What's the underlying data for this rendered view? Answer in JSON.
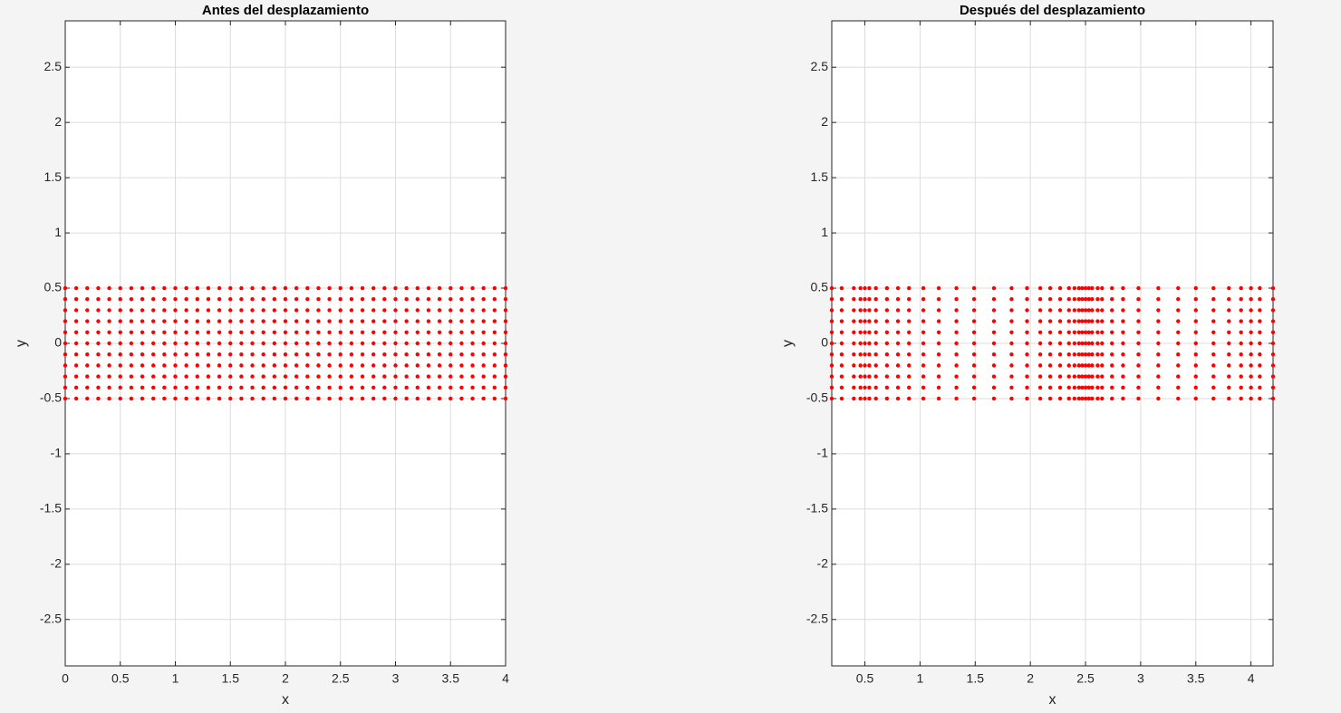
{
  "chart_data": [
    {
      "type": "scatter",
      "title": "Antes del desplazamiento",
      "xlabel": "x",
      "ylabel": "y",
      "color": "#ff0000",
      "grid": true,
      "xlim": [
        0,
        4
      ],
      "ylim": [
        -2.92,
        2.92
      ],
      "xticks": [
        0,
        0.5,
        1,
        1.5,
        2,
        2.5,
        3,
        3.5,
        4
      ],
      "yticks": [
        -2.5,
        -2,
        -1.5,
        -1,
        -0.5,
        0,
        0.5,
        1,
        1.5,
        2,
        2.5
      ],
      "x": [
        0,
        0.1,
        0.2,
        0.3,
        0.4,
        0.5,
        0.6,
        0.7,
        0.8,
        0.9,
        1,
        1.1,
        1.2,
        1.3,
        1.4,
        1.5,
        1.6,
        1.7,
        1.8,
        1.9,
        2,
        2.1,
        2.2,
        2.3,
        2.4,
        2.5,
        2.6,
        2.7,
        2.8,
        2.9,
        3,
        3.1,
        3.2,
        3.3,
        3.4,
        3.5,
        3.6,
        3.7,
        3.8,
        3.9,
        4
      ],
      "series": [
        {
          "values": [
            0.5,
            0.5,
            0.5,
            0.5,
            0.5,
            0.5,
            0.5,
            0.5,
            0.5,
            0.5,
            0.5,
            0.5,
            0.5,
            0.5,
            0.5,
            0.5,
            0.5,
            0.5,
            0.5,
            0.5,
            0.5,
            0.5,
            0.5,
            0.5,
            0.5,
            0.5,
            0.5,
            0.5,
            0.5,
            0.5,
            0.5,
            0.5,
            0.5,
            0.5,
            0.5,
            0.5,
            0.5,
            0.5,
            0.5,
            0.5,
            0.5
          ]
        },
        {
          "values": [
            0.4,
            0.4,
            0.4,
            0.4,
            0.4,
            0.4,
            0.4,
            0.4,
            0.4,
            0.4,
            0.4,
            0.4,
            0.4,
            0.4,
            0.4,
            0.4,
            0.4,
            0.4,
            0.4,
            0.4,
            0.4,
            0.4,
            0.4,
            0.4,
            0.4,
            0.4,
            0.4,
            0.4,
            0.4,
            0.4,
            0.4,
            0.4,
            0.4,
            0.4,
            0.4,
            0.4,
            0.4,
            0.4,
            0.4,
            0.4,
            0.4
          ]
        },
        {
          "values": [
            0.3,
            0.3,
            0.3,
            0.3,
            0.3,
            0.3,
            0.3,
            0.3,
            0.3,
            0.3,
            0.3,
            0.3,
            0.3,
            0.3,
            0.3,
            0.3,
            0.3,
            0.3,
            0.3,
            0.3,
            0.3,
            0.3,
            0.3,
            0.3,
            0.3,
            0.3,
            0.3,
            0.3,
            0.3,
            0.3,
            0.3,
            0.3,
            0.3,
            0.3,
            0.3,
            0.3,
            0.3,
            0.3,
            0.3,
            0.3,
            0.3
          ]
        },
        {
          "values": [
            0.2,
            0.2,
            0.2,
            0.2,
            0.2,
            0.2,
            0.2,
            0.2,
            0.2,
            0.2,
            0.2,
            0.2,
            0.2,
            0.2,
            0.2,
            0.2,
            0.2,
            0.2,
            0.2,
            0.2,
            0.2,
            0.2,
            0.2,
            0.2,
            0.2,
            0.2,
            0.2,
            0.2,
            0.2,
            0.2,
            0.2,
            0.2,
            0.2,
            0.2,
            0.2,
            0.2,
            0.2,
            0.2,
            0.2,
            0.2,
            0.2
          ]
        },
        {
          "values": [
            0.1,
            0.1,
            0.1,
            0.1,
            0.1,
            0.1,
            0.1,
            0.1,
            0.1,
            0.1,
            0.1,
            0.1,
            0.1,
            0.1,
            0.1,
            0.1,
            0.1,
            0.1,
            0.1,
            0.1,
            0.1,
            0.1,
            0.1,
            0.1,
            0.1,
            0.1,
            0.1,
            0.1,
            0.1,
            0.1,
            0.1,
            0.1,
            0.1,
            0.1,
            0.1,
            0.1,
            0.1,
            0.1,
            0.1,
            0.1,
            0.1
          ]
        },
        {
          "values": [
            0,
            0,
            0,
            0,
            0,
            0,
            0,
            0,
            0,
            0,
            0,
            0,
            0,
            0,
            0,
            0,
            0,
            0,
            0,
            0,
            0,
            0,
            0,
            0,
            0,
            0,
            0,
            0,
            0,
            0,
            0,
            0,
            0,
            0,
            0,
            0,
            0,
            0,
            0,
            0,
            0
          ]
        },
        {
          "values": [
            -0.1,
            -0.1,
            -0.1,
            -0.1,
            -0.1,
            -0.1,
            -0.1,
            -0.1,
            -0.1,
            -0.1,
            -0.1,
            -0.1,
            -0.1,
            -0.1,
            -0.1,
            -0.1,
            -0.1,
            -0.1,
            -0.1,
            -0.1,
            -0.1,
            -0.1,
            -0.1,
            -0.1,
            -0.1,
            -0.1,
            -0.1,
            -0.1,
            -0.1,
            -0.1,
            -0.1,
            -0.1,
            -0.1,
            -0.1,
            -0.1,
            -0.1,
            -0.1,
            -0.1,
            -0.1,
            -0.1,
            -0.1
          ]
        },
        {
          "values": [
            -0.2,
            -0.2,
            -0.2,
            -0.2,
            -0.2,
            -0.2,
            -0.2,
            -0.2,
            -0.2,
            -0.2,
            -0.2,
            -0.2,
            -0.2,
            -0.2,
            -0.2,
            -0.2,
            -0.2,
            -0.2,
            -0.2,
            -0.2,
            -0.2,
            -0.2,
            -0.2,
            -0.2,
            -0.2,
            -0.2,
            -0.2,
            -0.2,
            -0.2,
            -0.2,
            -0.2,
            -0.2,
            -0.2,
            -0.2,
            -0.2,
            -0.2,
            -0.2,
            -0.2,
            -0.2,
            -0.2,
            -0.2
          ]
        },
        {
          "values": [
            -0.3,
            -0.3,
            -0.3,
            -0.3,
            -0.3,
            -0.3,
            -0.3,
            -0.3,
            -0.3,
            -0.3,
            -0.3,
            -0.3,
            -0.3,
            -0.3,
            -0.3,
            -0.3,
            -0.3,
            -0.3,
            -0.3,
            -0.3,
            -0.3,
            -0.3,
            -0.3,
            -0.3,
            -0.3,
            -0.3,
            -0.3,
            -0.3,
            -0.3,
            -0.3,
            -0.3,
            -0.3,
            -0.3,
            -0.3,
            -0.3,
            -0.3,
            -0.3,
            -0.3,
            -0.3,
            -0.3,
            -0.3
          ]
        },
        {
          "values": [
            -0.4,
            -0.4,
            -0.4,
            -0.4,
            -0.4,
            -0.4,
            -0.4,
            -0.4,
            -0.4,
            -0.4,
            -0.4,
            -0.4,
            -0.4,
            -0.4,
            -0.4,
            -0.4,
            -0.4,
            -0.4,
            -0.4,
            -0.4,
            -0.4,
            -0.4,
            -0.4,
            -0.4,
            -0.4,
            -0.4,
            -0.4,
            -0.4,
            -0.4,
            -0.4,
            -0.4,
            -0.4,
            -0.4,
            -0.4,
            -0.4,
            -0.4,
            -0.4,
            -0.4,
            -0.4,
            -0.4,
            -0.4
          ]
        },
        {
          "values": [
            -0.5,
            -0.5,
            -0.5,
            -0.5,
            -0.5,
            -0.5,
            -0.5,
            -0.5,
            -0.5,
            -0.5,
            -0.5,
            -0.5,
            -0.5,
            -0.5,
            -0.5,
            -0.5,
            -0.5,
            -0.5,
            -0.5,
            -0.5,
            -0.5,
            -0.5,
            -0.5,
            -0.5,
            -0.5,
            -0.5,
            -0.5,
            -0.5,
            -0.5,
            -0.5,
            -0.5,
            -0.5,
            -0.5,
            -0.5,
            -0.5,
            -0.5,
            -0.5,
            -0.5,
            -0.5,
            -0.5,
            -0.5
          ]
        }
      ]
    },
    {
      "type": "scatter",
      "title": "Después del desplazamiento",
      "xlabel": "x",
      "ylabel": "y",
      "color": "#ff0000",
      "grid": true,
      "xlim": [
        0.2,
        4.2
      ],
      "ylim": [
        -2.92,
        2.92
      ],
      "xticks": [
        0.5,
        1,
        1.5,
        2,
        2.5,
        3,
        3.5,
        4
      ],
      "yticks": [
        -2.5,
        -2,
        -1.5,
        -1,
        -0.5,
        0,
        0.5,
        1,
        1.5,
        2,
        2.5
      ],
      "x": [
        0.2,
        0.29,
        0.4,
        0.46,
        0.5,
        0.54,
        0.6,
        0.7,
        0.8,
        0.9,
        1.03,
        1.17,
        1.33,
        1.49,
        1.67,
        1.83,
        1.97,
        2.09,
        2.18,
        2.27,
        2.35,
        2.4,
        2.44,
        2.47,
        2.5,
        2.53,
        2.56,
        2.61,
        2.65,
        2.74,
        2.84,
        2.98,
        3.16,
        3.34,
        3.5,
        3.66,
        3.8,
        3.91,
        4,
        4.08,
        4.2
      ],
      "series": [
        {
          "values": [
            0.5,
            0.5,
            0.5,
            0.5,
            0.5,
            0.5,
            0.5,
            0.5,
            0.5,
            0.5,
            0.5,
            0.5,
            0.5,
            0.5,
            0.5,
            0.5,
            0.5,
            0.5,
            0.5,
            0.5,
            0.5,
            0.5,
            0.5,
            0.5,
            0.5,
            0.5,
            0.5,
            0.5,
            0.5,
            0.5,
            0.5,
            0.5,
            0.5,
            0.5,
            0.5,
            0.5,
            0.5,
            0.5,
            0.5,
            0.5,
            0.5
          ]
        },
        {
          "values": [
            0.4,
            0.4,
            0.4,
            0.4,
            0.4,
            0.4,
            0.4,
            0.4,
            0.4,
            0.4,
            0.4,
            0.4,
            0.4,
            0.4,
            0.4,
            0.4,
            0.4,
            0.4,
            0.4,
            0.4,
            0.4,
            0.4,
            0.4,
            0.4,
            0.4,
            0.4,
            0.4,
            0.4,
            0.4,
            0.4,
            0.4,
            0.4,
            0.4,
            0.4,
            0.4,
            0.4,
            0.4,
            0.4,
            0.4,
            0.4,
            0.4
          ]
        },
        {
          "values": [
            0.3,
            0.3,
            0.3,
            0.3,
            0.3,
            0.3,
            0.3,
            0.3,
            0.3,
            0.3,
            0.3,
            0.3,
            0.3,
            0.3,
            0.3,
            0.3,
            0.3,
            0.3,
            0.3,
            0.3,
            0.3,
            0.3,
            0.3,
            0.3,
            0.3,
            0.3,
            0.3,
            0.3,
            0.3,
            0.3,
            0.3,
            0.3,
            0.3,
            0.3,
            0.3,
            0.3,
            0.3,
            0.3,
            0.3,
            0.3,
            0.3
          ]
        },
        {
          "values": [
            0.2,
            0.2,
            0.2,
            0.2,
            0.2,
            0.2,
            0.2,
            0.2,
            0.2,
            0.2,
            0.2,
            0.2,
            0.2,
            0.2,
            0.2,
            0.2,
            0.2,
            0.2,
            0.2,
            0.2,
            0.2,
            0.2,
            0.2,
            0.2,
            0.2,
            0.2,
            0.2,
            0.2,
            0.2,
            0.2,
            0.2,
            0.2,
            0.2,
            0.2,
            0.2,
            0.2,
            0.2,
            0.2,
            0.2,
            0.2,
            0.2
          ]
        },
        {
          "values": [
            0.1,
            0.1,
            0.1,
            0.1,
            0.1,
            0.1,
            0.1,
            0.1,
            0.1,
            0.1,
            0.1,
            0.1,
            0.1,
            0.1,
            0.1,
            0.1,
            0.1,
            0.1,
            0.1,
            0.1,
            0.1,
            0.1,
            0.1,
            0.1,
            0.1,
            0.1,
            0.1,
            0.1,
            0.1,
            0.1,
            0.1,
            0.1,
            0.1,
            0.1,
            0.1,
            0.1,
            0.1,
            0.1,
            0.1,
            0.1,
            0.1
          ]
        },
        {
          "values": [
            0,
            0,
            0,
            0,
            0,
            0,
            0,
            0,
            0,
            0,
            0,
            0,
            0,
            0,
            0,
            0,
            0,
            0,
            0,
            0,
            0,
            0,
            0,
            0,
            0,
            0,
            0,
            0,
            0,
            0,
            0,
            0,
            0,
            0,
            0,
            0,
            0,
            0,
            0,
            0,
            0
          ]
        },
        {
          "values": [
            -0.1,
            -0.1,
            -0.1,
            -0.1,
            -0.1,
            -0.1,
            -0.1,
            -0.1,
            -0.1,
            -0.1,
            -0.1,
            -0.1,
            -0.1,
            -0.1,
            -0.1,
            -0.1,
            -0.1,
            -0.1,
            -0.1,
            -0.1,
            -0.1,
            -0.1,
            -0.1,
            -0.1,
            -0.1,
            -0.1,
            -0.1,
            -0.1,
            -0.1,
            -0.1,
            -0.1,
            -0.1,
            -0.1,
            -0.1,
            -0.1,
            -0.1,
            -0.1,
            -0.1,
            -0.1,
            -0.1,
            -0.1
          ]
        },
        {
          "values": [
            -0.2,
            -0.2,
            -0.2,
            -0.2,
            -0.2,
            -0.2,
            -0.2,
            -0.2,
            -0.2,
            -0.2,
            -0.2,
            -0.2,
            -0.2,
            -0.2,
            -0.2,
            -0.2,
            -0.2,
            -0.2,
            -0.2,
            -0.2,
            -0.2,
            -0.2,
            -0.2,
            -0.2,
            -0.2,
            -0.2,
            -0.2,
            -0.2,
            -0.2,
            -0.2,
            -0.2,
            -0.2,
            -0.2,
            -0.2,
            -0.2,
            -0.2,
            -0.2,
            -0.2,
            -0.2,
            -0.2,
            -0.2
          ]
        },
        {
          "values": [
            -0.3,
            -0.3,
            -0.3,
            -0.3,
            -0.3,
            -0.3,
            -0.3,
            -0.3,
            -0.3,
            -0.3,
            -0.3,
            -0.3,
            -0.3,
            -0.3,
            -0.3,
            -0.3,
            -0.3,
            -0.3,
            -0.3,
            -0.3,
            -0.3,
            -0.3,
            -0.3,
            -0.3,
            -0.3,
            -0.3,
            -0.3,
            -0.3,
            -0.3,
            -0.3,
            -0.3,
            -0.3,
            -0.3,
            -0.3,
            -0.3,
            -0.3,
            -0.3,
            -0.3,
            -0.3,
            -0.3,
            -0.3
          ]
        },
        {
          "values": [
            -0.4,
            -0.4,
            -0.4,
            -0.4,
            -0.4,
            -0.4,
            -0.4,
            -0.4,
            -0.4,
            -0.4,
            -0.4,
            -0.4,
            -0.4,
            -0.4,
            -0.4,
            -0.4,
            -0.4,
            -0.4,
            -0.4,
            -0.4,
            -0.4,
            -0.4,
            -0.4,
            -0.4,
            -0.4,
            -0.4,
            -0.4,
            -0.4,
            -0.4,
            -0.4,
            -0.4,
            -0.4,
            -0.4,
            -0.4,
            -0.4,
            -0.4,
            -0.4,
            -0.4,
            -0.4,
            -0.4,
            -0.4
          ]
        },
        {
          "values": [
            -0.5,
            -0.5,
            -0.5,
            -0.5,
            -0.5,
            -0.5,
            -0.5,
            -0.5,
            -0.5,
            -0.5,
            -0.5,
            -0.5,
            -0.5,
            -0.5,
            -0.5,
            -0.5,
            -0.5,
            -0.5,
            -0.5,
            -0.5,
            -0.5,
            -0.5,
            -0.5,
            -0.5,
            -0.5,
            -0.5,
            -0.5,
            -0.5,
            -0.5,
            -0.5,
            -0.5,
            -0.5,
            -0.5,
            -0.5,
            -0.5,
            -0.5,
            -0.5,
            -0.5,
            -0.5,
            -0.5,
            -0.5
          ]
        }
      ]
    }
  ]
}
